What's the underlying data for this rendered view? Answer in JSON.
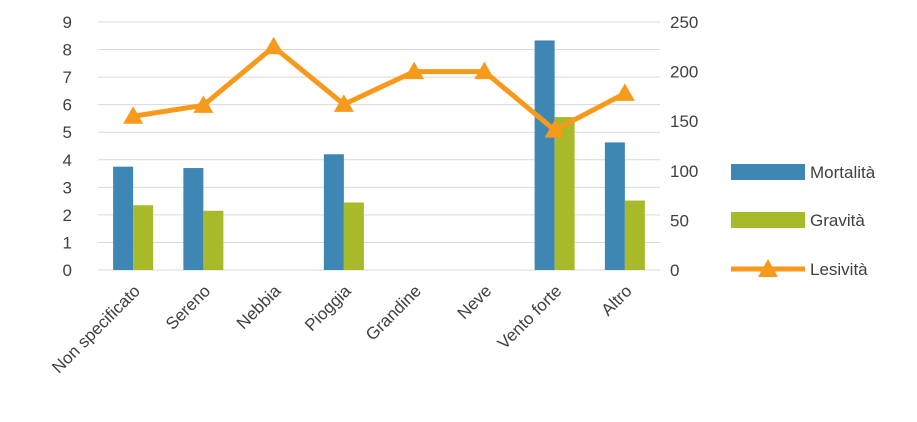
{
  "chart_data": {
    "type": "bar",
    "title": "",
    "xlabel": "",
    "ylabel": "",
    "y2label": "",
    "categories": [
      "Non specificato",
      "Sereno",
      "Nebbia",
      "Pioggia",
      "Grandine",
      "Neve",
      "Vento forte",
      "Altro"
    ],
    "ylim": [
      0,
      9
    ],
    "y_ticks": [
      "0",
      "1",
      "2",
      "3",
      "4",
      "5",
      "6",
      "7",
      "8",
      "9"
    ],
    "y2lim": [
      0,
      250
    ],
    "y2_ticks": [
      "0",
      "50",
      "100",
      "150",
      "200",
      "250"
    ],
    "grid": true,
    "legend_position": "right",
    "series": [
      {
        "name": "Mortalità",
        "kind": "bar",
        "axis": "left",
        "color": "#3e86b3",
        "values": [
          3.75,
          3.7,
          null,
          4.2,
          null,
          null,
          8.33,
          4.63
        ]
      },
      {
        "name": "Gravità",
        "kind": "bar",
        "axis": "left",
        "color": "#a8ba2a",
        "values": [
          2.35,
          2.15,
          null,
          2.45,
          null,
          null,
          5.55,
          2.52
        ]
      },
      {
        "name": "Lesività",
        "kind": "line",
        "axis": "right",
        "color": "#f79a1c",
        "marker": "triangle",
        "values": [
          155,
          166,
          225,
          167,
          200,
          200,
          141,
          178
        ]
      }
    ]
  }
}
